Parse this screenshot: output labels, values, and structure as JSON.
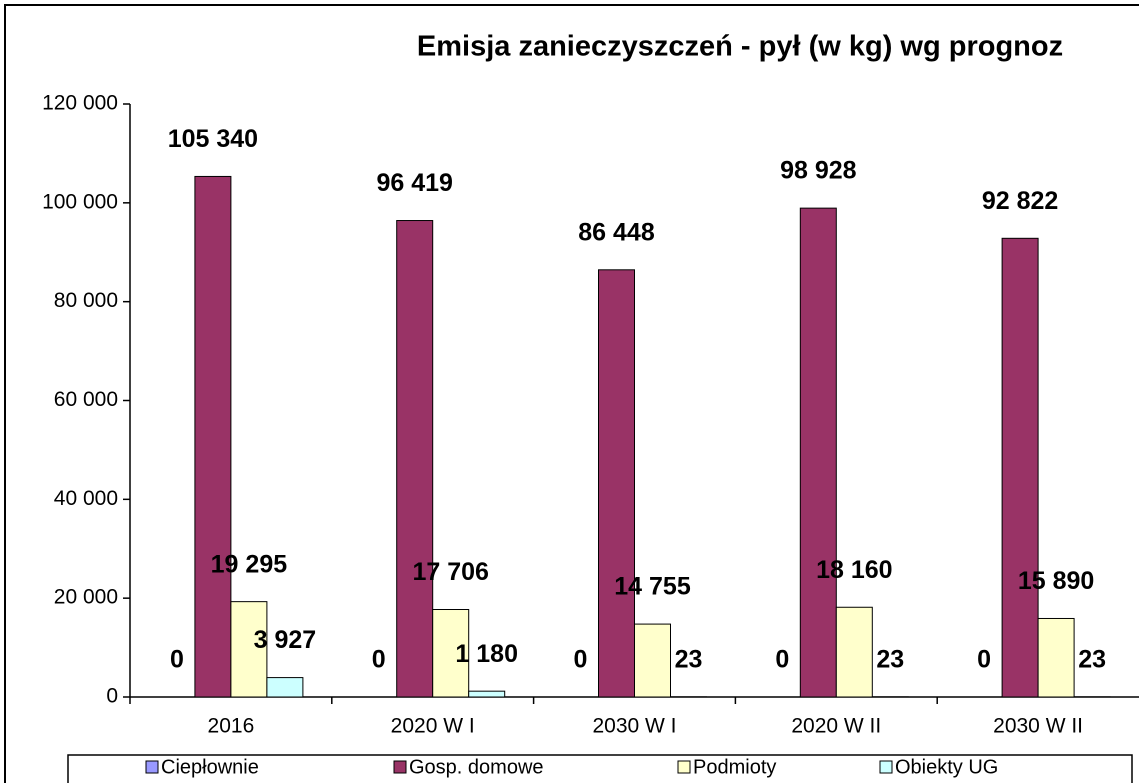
{
  "chart_data": {
    "type": "bar",
    "title": "Emisja zanieczyszczeń -  pył (w kg) wg prognoz",
    "categories": [
      "2016",
      "2020 W I",
      "2030 W I",
      "2020 W II",
      "2030 W II"
    ],
    "series": [
      {
        "name": "Ciepłownie",
        "color": "#9999ff",
        "values": [
          0,
          0,
          0,
          0,
          0
        ]
      },
      {
        "name": "Gosp. domowe",
        "color": "#993366",
        "values": [
          105340,
          96419,
          86448,
          98928,
          92822
        ],
        "value_labels": [
          "105 340",
          "96 419",
          "86 448",
          "98 928",
          "92 822"
        ]
      },
      {
        "name": "Podmioty",
        "color": "#ffffcc",
        "values": [
          19295,
          17706,
          14755,
          18160,
          15890
        ],
        "value_labels": [
          "19 295",
          "17 706",
          "14 755",
          "18 160",
          "15 890"
        ]
      },
      {
        "name": "Obiekty UG",
        "color": "#ccffff",
        "values": [
          3927,
          1180,
          23,
          23,
          23
        ],
        "value_labels": [
          "3 927",
          "1 180",
          "23",
          "23",
          "23"
        ]
      }
    ],
    "ylim": [
      0,
      120000
    ],
    "yticks": [
      0,
      {
        "value": 20000,
        "label": "20 000"
      },
      {
        "value": 40000,
        "label": "40 000"
      },
      {
        "value": 60000,
        "label": "60 000"
      },
      {
        "value": 80000,
        "label": "80 000"
      },
      {
        "value": 100000,
        "label": "100 000"
      },
      {
        "value": 120000,
        "label": "120 000"
      }
    ],
    "legend": "bottom"
  }
}
